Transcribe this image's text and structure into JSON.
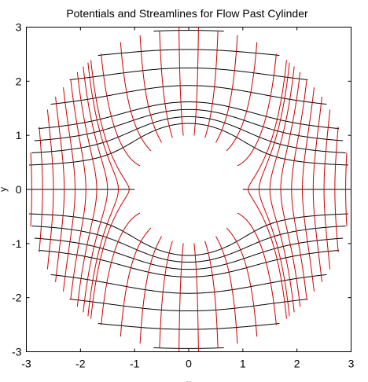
{
  "chart_data": {
    "type": "line",
    "title": "Potentials and Streamlines for Flow Past Cylinder",
    "xlabel": "x",
    "ylabel": "y",
    "xlim": [
      -3,
      3
    ],
    "ylim": [
      -3,
      3
    ],
    "xticks": [
      -3,
      -2,
      -1,
      0,
      1,
      2,
      3
    ],
    "yticks": [
      -3,
      -2,
      -1,
      0,
      1,
      2,
      3
    ],
    "grid": false,
    "legend": "none",
    "cylinder_radius": 1,
    "domain_radius": 3,
    "series": [
      {
        "kind": "streamlines",
        "color": "#000000",
        "stream_function_values": [
          -2.6,
          -2.2,
          -1.8,
          -1.4,
          -1.0,
          -0.8,
          -0.6,
          -0.4,
          0,
          0.4,
          0.6,
          0.8,
          1.0,
          1.4,
          1.8,
          2.2,
          2.6
        ]
      },
      {
        "kind": "equipotentials",
        "color": "#cc0000",
        "x_at_y0": [
          -2.9,
          -2.7,
          -2.5,
          -2.3,
          -2.1,
          -1.9,
          -1.7,
          -1.5,
          -1.3,
          -1.1,
          -0.9,
          -0.7,
          -0.5,
          -0.3,
          -0.1,
          0.1,
          0.3,
          0.5,
          0.7,
          0.9,
          1.1,
          1.3,
          1.5,
          1.7,
          1.9,
          2.1,
          2.3,
          2.5,
          2.7,
          2.9
        ]
      }
    ]
  }
}
